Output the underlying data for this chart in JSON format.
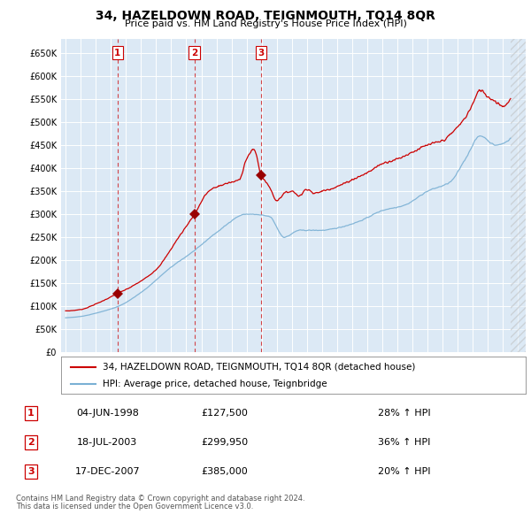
{
  "title": "34, HAZELDOWN ROAD, TEIGNMOUTH, TQ14 8QR",
  "subtitle": "Price paid vs. HM Land Registry's House Price Index (HPI)",
  "ylim": [
    0,
    680000
  ],
  "yticks": [
    0,
    50000,
    100000,
    150000,
    200000,
    250000,
    300000,
    350000,
    400000,
    450000,
    500000,
    550000,
    600000,
    650000
  ],
  "ytick_labels": [
    "£0",
    "£50K",
    "£100K",
    "£150K",
    "£200K",
    "£250K",
    "£300K",
    "£350K",
    "£400K",
    "£450K",
    "£500K",
    "£550K",
    "£600K",
    "£650K"
  ],
  "xlim_start": 1994.7,
  "xlim_end": 2025.5,
  "background_color": "#ffffff",
  "plot_bg_color": "#dce9f5",
  "grid_color": "#ffffff",
  "red_line_color": "#cc0000",
  "blue_line_color": "#7ab0d4",
  "sale_marker_color": "#990000",
  "vline_color": "#cc0000",
  "legend_line1": "34, HAZELDOWN ROAD, TEIGNMOUTH, TQ14 8QR (detached house)",
  "legend_line2": "HPI: Average price, detached house, Teignbridge",
  "footer1": "Contains HM Land Registry data © Crown copyright and database right 2024.",
  "footer2": "This data is licensed under the Open Government Licence v3.0.",
  "table_rows": [
    {
      "num": 1,
      "date": "04-JUN-1998",
      "price": "£127,500",
      "pct": "28% ↑ HPI"
    },
    {
      "num": 2,
      "date": "18-JUL-2003",
      "price": "£299,950",
      "pct": "36% ↑ HPI"
    },
    {
      "num": 3,
      "date": "17-DEC-2007",
      "price": "£385,000",
      "pct": "20% ↑ HPI"
    }
  ],
  "sales": [
    {
      "num": 1,
      "year": 1998.44,
      "price": 127500
    },
    {
      "num": 2,
      "year": 2003.54,
      "price": 299950
    },
    {
      "num": 3,
      "year": 2007.96,
      "price": 385000
    }
  ]
}
